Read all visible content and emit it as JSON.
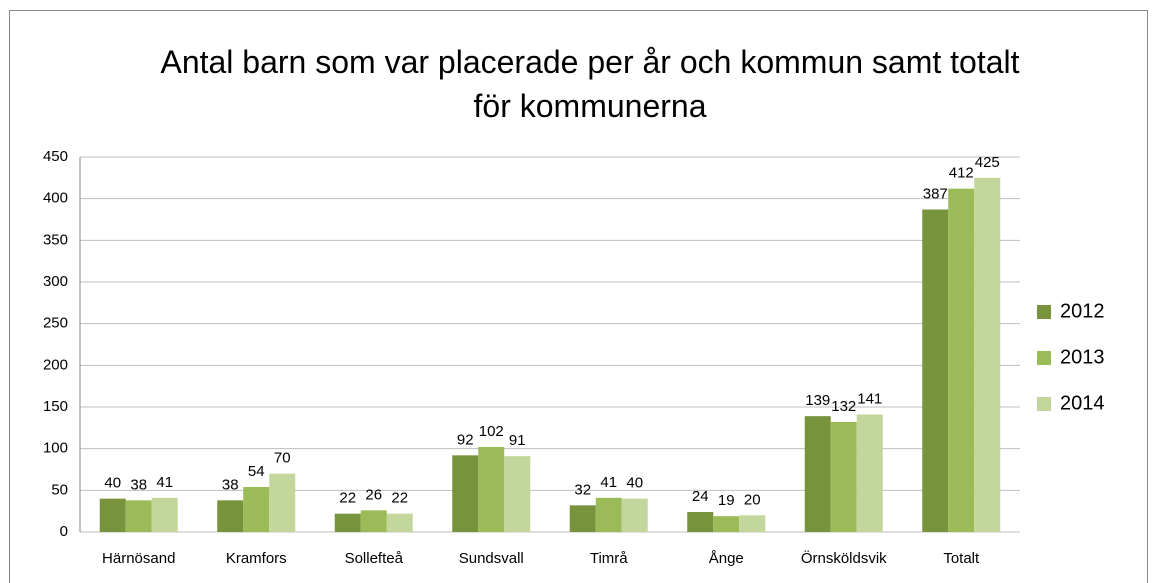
{
  "chart_data": {
    "type": "bar",
    "title": "Antal barn som var placerade per år och kommun samt totalt för kommunerna",
    "categories": [
      "Härnösand",
      "Kramfors",
      "Sollefteå",
      "Sundsvall",
      "Timrå",
      "Ånge",
      "Örnsköldsvik",
      "Totalt"
    ],
    "series": [
      {
        "name": "2012",
        "color": "#77933c",
        "values": [
          40,
          38,
          22,
          92,
          32,
          24,
          139,
          387
        ]
      },
      {
        "name": "2013",
        "color": "#9bbb59",
        "values": [
          38,
          54,
          26,
          102,
          41,
          19,
          132,
          412
        ]
      },
      {
        "name": "2014",
        "color": "#c3d69b",
        "values": [
          41,
          70,
          22,
          91,
          40,
          20,
          141,
          425
        ]
      }
    ],
    "ylim": [
      0,
      450
    ],
    "yticks": [
      0,
      50,
      100,
      150,
      200,
      250,
      300,
      350,
      400,
      450
    ],
    "grid": true,
    "legend": "right"
  }
}
